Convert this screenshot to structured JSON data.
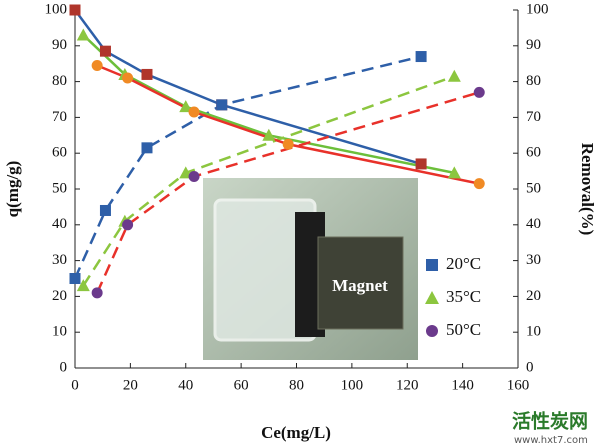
{
  "chart_data": {
    "type": "line",
    "xlabel": "Ce(mg/L)",
    "ylabel": "q(mg/g)",
    "y2label": "Removal(%)",
    "xlim": [
      0,
      160
    ],
    "xticks": [
      0,
      20,
      40,
      60,
      80,
      100,
      120,
      140,
      160
    ],
    "ylim": [
      0,
      100
    ],
    "yticks": [
      0,
      10,
      20,
      30,
      40,
      50,
      60,
      70,
      80,
      90,
      100
    ],
    "y2lim": [
      0,
      100
    ],
    "y2ticks": [
      0,
      10,
      20,
      30,
      40,
      50,
      60,
      70,
      80,
      90,
      100
    ],
    "annotation": "Magnet",
    "watermark": [
      "活性炭网",
      "www.hxt7.com"
    ],
    "series": [
      {
        "name": "20°C",
        "marker": "square",
        "color": "#2e5fa8",
        "removal_color": "#2e5fa8",
        "removal_marker_color": "#b0352b",
        "q_x": [
          0,
          11,
          26,
          53,
          125
        ],
        "q": [
          25,
          44,
          61.5,
          73.5,
          87
        ],
        "removal_x": [
          0,
          11,
          26,
          53,
          125
        ],
        "removal": [
          100,
          88.5,
          82,
          73.5,
          57
        ]
      },
      {
        "name": "35°C",
        "marker": "triangle",
        "color": "#8cc63f",
        "removal_color": "#6cbf3a",
        "removal_marker_color": "#8cc63f",
        "q_x": [
          3,
          18,
          40,
          137
        ],
        "q": [
          23,
          41,
          54.5,
          81.5
        ],
        "removal_x": [
          3,
          18,
          40,
          70,
          137
        ],
        "removal": [
          93,
          82,
          73,
          65,
          54.5
        ]
      },
      {
        "name": "50°C",
        "marker": "circle",
        "color": "#6b3a8c",
        "q_line_color": "#e8312a",
        "removal_color": "#e8312a",
        "removal_marker_color": "#f08a24",
        "q_x": [
          8,
          19,
          43,
          146
        ],
        "q": [
          21,
          40,
          53.5,
          77
        ],
        "removal_x": [
          8,
          19,
          43,
          77,
          146
        ],
        "removal": [
          84.5,
          81,
          71.5,
          62.5,
          51.5
        ]
      }
    ]
  }
}
